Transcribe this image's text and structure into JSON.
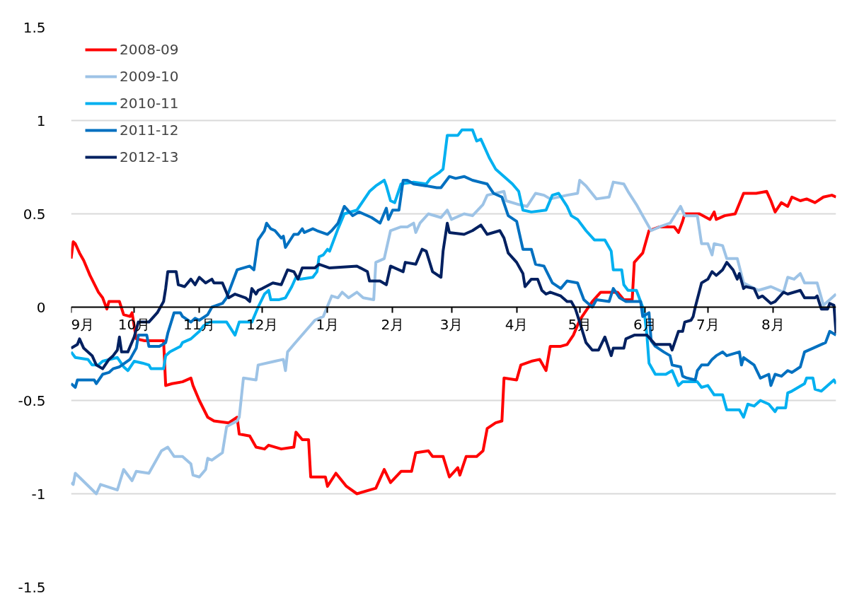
{
  "chart_data": {
    "type": "line",
    "xlim": [
      "2012-09-01",
      "2013-08-31"
    ],
    "ylim": [
      -1.5,
      1.5
    ],
    "xticks": [
      {
        "value": "2012-09-01",
        "label": "9月"
      },
      {
        "value": "2012-10-01",
        "label": "10月"
      },
      {
        "value": "2012-11-01",
        "label": "11月"
      },
      {
        "value": "2012-12-01",
        "label": "12月"
      },
      {
        "value": "2013-01-01",
        "label": "1月"
      },
      {
        "value": "2013-02-01",
        "label": "2月"
      },
      {
        "value": "2013-03-01",
        "label": "3月"
      },
      {
        "value": "2013-04-01",
        "label": "4月"
      },
      {
        "value": "2013-05-01",
        "label": "5月"
      },
      {
        "value": "2013-06-01",
        "label": "6月"
      },
      {
        "value": "2013-07-01",
        "label": "7月"
      },
      {
        "value": "2013-08-01",
        "label": "8月"
      }
    ],
    "yticks": [
      -1.5,
      -1,
      -0.5,
      0,
      0.5,
      1,
      1.5
    ],
    "grid": "y",
    "legend": "top left",
    "line_style": "solid",
    "series": [
      {
        "name": "2008-09",
        "color": "#ff0000",
        "x": [
          "2012-09-01",
          "2012-09-02",
          "2012-09-03",
          "2012-09-05",
          "2012-09-07",
          "2012-09-10",
          "2012-09-14",
          "2012-09-16",
          "2012-09-18",
          "2012-09-19",
          "2012-09-24",
          "2012-09-26",
          "2012-09-29",
          "2012-09-30",
          "2012-10-02",
          "2012-10-06",
          "2012-10-15",
          "2012-10-16",
          "2012-10-19",
          "2012-10-24",
          "2012-10-28",
          "2012-10-29",
          "2012-11-01",
          "2012-11-05",
          "2012-11-08",
          "2012-11-15",
          "2012-11-19",
          "2012-11-20",
          "2012-11-25",
          "2012-11-28",
          "2012-12-02",
          "2012-12-04",
          "2012-12-10",
          "2012-12-16",
          "2012-12-17",
          "2012-12-20",
          "2012-12-23",
          "2012-12-24",
          "2012-12-31",
          "2013-01-01",
          "2013-01-05",
          "2013-01-10",
          "2013-01-15",
          "2013-01-24",
          "2013-01-28",
          "2013-01-31",
          "2013-02-05",
          "2013-02-10",
          "2013-02-12",
          "2013-02-18",
          "2013-02-20",
          "2013-02-25",
          "2013-02-28",
          "2013-03-04",
          "2013-03-05",
          "2013-03-08",
          "2013-03-13",
          "2013-03-16",
          "2013-03-18",
          "2013-03-22",
          "2013-03-25",
          "2013-03-26",
          "2013-04-01",
          "2013-04-03",
          "2013-04-08",
          "2013-04-12",
          "2013-04-15",
          "2013-04-17",
          "2013-04-22",
          "2013-04-25",
          "2013-04-28",
          "2013-05-01",
          "2013-05-07",
          "2013-05-11",
          "2013-05-19",
          "2013-05-22",
          "2013-05-26",
          "2013-05-27",
          "2013-05-31",
          "2013-06-03",
          "2013-06-08",
          "2013-06-15",
          "2013-06-17",
          "2013-06-19",
          "2013-06-20",
          "2013-06-27",
          "2013-07-02",
          "2013-07-04",
          "2013-07-05",
          "2013-07-09",
          "2013-07-14",
          "2013-07-18",
          "2013-07-24",
          "2013-07-29",
          "2013-07-31",
          "2013-08-02",
          "2013-08-05",
          "2013-08-08",
          "2013-08-10",
          "2013-08-14",
          "2013-08-17",
          "2013-08-21",
          "2013-08-25",
          "2013-08-29",
          "2013-08-31"
        ],
        "values": [
          0.26,
          0.35,
          0.34,
          0.29,
          0.25,
          0.17,
          0.08,
          0.05,
          -0.01,
          0.03,
          0.03,
          -0.04,
          -0.05,
          -0.03,
          -0.17,
          -0.18,
          -0.18,
          -0.42,
          -0.41,
          -0.4,
          -0.38,
          -0.42,
          -0.5,
          -0.59,
          -0.61,
          -0.62,
          -0.59,
          -0.68,
          -0.69,
          -0.75,
          -0.76,
          -0.74,
          -0.76,
          -0.75,
          -0.67,
          -0.71,
          -0.71,
          -0.91,
          -0.91,
          -0.96,
          -0.89,
          -0.96,
          -1.0,
          -0.97,
          -0.87,
          -0.94,
          -0.88,
          -0.88,
          -0.78,
          -0.77,
          -0.8,
          -0.8,
          -0.91,
          -0.86,
          -0.9,
          -0.8,
          -0.8,
          -0.77,
          -0.65,
          -0.62,
          -0.61,
          -0.38,
          -0.39,
          -0.31,
          -0.29,
          -0.28,
          -0.34,
          -0.21,
          -0.21,
          -0.2,
          -0.15,
          -0.07,
          0.03,
          0.08,
          0.08,
          0.04,
          0.04,
          0.24,
          0.29,
          0.41,
          0.43,
          0.43,
          0.4,
          0.46,
          0.5,
          0.5,
          0.47,
          0.51,
          0.47,
          0.49,
          0.5,
          0.61,
          0.61,
          0.62,
          0.57,
          0.51,
          0.56,
          0.54,
          0.59,
          0.57,
          0.58,
          0.56,
          0.59,
          0.6,
          0.59
        ]
      },
      {
        "name": "2009-10",
        "color": "#9dc3e6",
        "x": [
          "2012-09-01",
          "2012-09-02",
          "2012-09-03",
          "2012-09-13",
          "2012-09-15",
          "2012-09-23",
          "2012-09-26",
          "2012-09-30",
          "2012-10-02",
          "2012-10-08",
          "2012-10-14",
          "2012-10-17",
          "2012-10-20",
          "2012-10-24",
          "2012-10-28",
          "2012-10-29",
          "2012-11-01",
          "2012-11-04",
          "2012-11-05",
          "2012-11-07",
          "2012-11-12",
          "2012-11-14",
          "2012-11-19",
          "2012-11-20",
          "2012-11-22",
          "2012-11-28",
          "2012-11-29",
          "2012-12-07",
          "2012-12-11",
          "2012-12-12",
          "2012-12-13",
          "2012-12-16",
          "2012-12-26",
          "2012-12-30",
          "2013-01-03",
          "2013-01-06",
          "2013-01-08",
          "2013-01-11",
          "2013-01-15",
          "2013-01-18",
          "2013-01-23",
          "2013-01-24",
          "2013-01-28",
          "2013-01-31",
          "2013-02-05",
          "2013-02-08",
          "2013-02-11",
          "2013-02-12",
          "2013-02-14",
          "2013-02-18",
          "2013-02-24",
          "2013-02-27",
          "2013-03-01",
          "2013-03-07",
          "2013-03-11",
          "2013-03-16",
          "2013-03-18",
          "2013-03-26",
          "2013-03-27",
          "2013-04-02",
          "2013-04-06",
          "2013-04-10",
          "2013-04-14",
          "2013-04-17",
          "2013-04-25",
          "2013-04-30",
          "2013-05-01",
          "2013-05-04",
          "2013-05-09",
          "2013-05-15",
          "2013-05-17",
          "2013-05-22",
          "2013-05-24",
          "2013-05-28",
          "2013-06-01",
          "2013-06-04",
          "2013-06-08",
          "2013-06-13",
          "2013-06-18",
          "2013-06-20",
          "2013-06-26",
          "2013-06-28",
          "2013-07-01",
          "2013-07-03",
          "2013-07-04",
          "2013-07-08",
          "2013-07-10",
          "2013-07-15",
          "2013-07-18",
          "2013-07-25",
          "2013-07-31",
          "2013-08-06",
          "2013-08-08",
          "2013-08-11",
          "2013-08-14",
          "2013-08-16",
          "2013-08-22",
          "2013-08-25",
          "2013-08-28",
          "2013-08-31"
        ],
        "values": [
          -0.94,
          -0.95,
          -0.89,
          -1.0,
          -0.95,
          -0.98,
          -0.87,
          -0.93,
          -0.88,
          -0.89,
          -0.77,
          -0.75,
          -0.8,
          -0.8,
          -0.84,
          -0.9,
          -0.91,
          -0.87,
          -0.81,
          -0.82,
          -0.78,
          -0.64,
          -0.61,
          -0.59,
          -0.38,
          -0.39,
          -0.31,
          -0.29,
          -0.28,
          -0.34,
          -0.24,
          -0.2,
          -0.07,
          -0.05,
          0.06,
          0.05,
          0.08,
          0.05,
          0.08,
          0.05,
          0.04,
          0.24,
          0.26,
          0.41,
          0.43,
          0.43,
          0.45,
          0.4,
          0.45,
          0.5,
          0.48,
          0.52,
          0.47,
          0.5,
          0.49,
          0.55,
          0.6,
          0.62,
          0.57,
          0.55,
          0.54,
          0.61,
          0.6,
          0.58,
          0.6,
          0.61,
          0.68,
          0.65,
          0.58,
          0.59,
          0.67,
          0.66,
          0.62,
          0.55,
          0.47,
          0.41,
          0.43,
          0.45,
          0.54,
          0.49,
          0.49,
          0.34,
          0.34,
          0.28,
          0.34,
          0.33,
          0.26,
          0.26,
          0.13,
          0.09,
          0.11,
          0.08,
          0.16,
          0.15,
          0.18,
          0.13,
          0.13,
          0.01,
          0.04,
          0.07
        ]
      },
      {
        "name": "2010-11",
        "color": "#00b0f0",
        "x": [
          "2012-09-01",
          "2012-09-03",
          "2012-09-09",
          "2012-09-11",
          "2012-09-14",
          "2012-09-16",
          "2012-09-23",
          "2012-09-26",
          "2012-09-28",
          "2012-10-01",
          "2012-10-05",
          "2012-10-08",
          "2012-10-09",
          "2012-10-15",
          "2012-10-16",
          "2012-10-18",
          "2012-10-23",
          "2012-10-24",
          "2012-10-28",
          "2012-11-01",
          "2012-11-03",
          "2012-11-06",
          "2012-11-09",
          "2012-11-14",
          "2012-11-18",
          "2012-11-20",
          "2012-11-26",
          "2012-11-29",
          "2012-12-02",
          "2012-12-04",
          "2012-12-05",
          "2012-12-09",
          "2012-12-12",
          "2012-12-15",
          "2012-12-17",
          "2012-12-19",
          "2012-12-25",
          "2012-12-27",
          "2012-12-28",
          "2012-12-30",
          "2013-01-01",
          "2013-01-02",
          "2013-01-06",
          "2013-01-09",
          "2013-01-15",
          "2013-01-21",
          "2013-01-24",
          "2013-01-28",
          "2013-01-29",
          "2013-01-31",
          "2013-02-02",
          "2013-02-05",
          "2013-02-11",
          "2013-02-17",
          "2013-02-19",
          "2013-02-23",
          "2013-02-25",
          "2013-02-27",
          "2013-03-04",
          "2013-03-06",
          "2013-03-11",
          "2013-03-13",
          "2013-03-15",
          "2013-03-19",
          "2013-03-22",
          "2013-03-26",
          "2013-03-30",
          "2013-04-02",
          "2013-04-04",
          "2013-04-08",
          "2013-04-15",
          "2013-04-18",
          "2013-04-21",
          "2013-04-25",
          "2013-04-27",
          "2013-04-30",
          "2013-05-04",
          "2013-05-08",
          "2013-05-13",
          "2013-05-16",
          "2013-05-17",
          "2013-05-21",
          "2013-05-22",
          "2013-05-24",
          "2013-05-28",
          "2013-05-31",
          "2013-06-01",
          "2013-06-02",
          "2013-06-03",
          "2013-06-06",
          "2013-06-11",
          "2013-06-14",
          "2013-06-17",
          "2013-06-19",
          "2013-06-26",
          "2013-06-28",
          "2013-07-01",
          "2013-07-04",
          "2013-07-08",
          "2013-07-10",
          "2013-07-16",
          "2013-07-18",
          "2013-07-20",
          "2013-07-23",
          "2013-07-26",
          "2013-07-30",
          "2013-08-02",
          "2013-08-03",
          "2013-08-07",
          "2013-08-08",
          "2013-08-10",
          "2013-08-16",
          "2013-08-17",
          "2013-08-20",
          "2013-08-21",
          "2013-08-24",
          "2013-08-30",
          "2013-08-31"
        ],
        "values": [
          -0.24,
          -0.27,
          -0.28,
          -0.31,
          -0.31,
          -0.29,
          -0.27,
          -0.32,
          -0.34,
          -0.29,
          -0.3,
          -0.31,
          -0.33,
          -0.33,
          -0.26,
          -0.24,
          -0.21,
          -0.19,
          -0.17,
          -0.13,
          -0.1,
          -0.08,
          -0.08,
          -0.08,
          -0.15,
          -0.08,
          -0.08,
          0.0,
          0.07,
          0.09,
          0.04,
          0.04,
          0.05,
          0.11,
          0.16,
          0.15,
          0.16,
          0.19,
          0.27,
          0.28,
          0.31,
          0.3,
          0.42,
          0.5,
          0.52,
          0.62,
          0.65,
          0.68,
          0.65,
          0.57,
          0.56,
          0.66,
          0.67,
          0.66,
          0.69,
          0.72,
          0.74,
          0.92,
          0.92,
          0.95,
          0.95,
          0.89,
          0.9,
          0.8,
          0.74,
          0.7,
          0.66,
          0.62,
          0.52,
          0.51,
          0.52,
          0.6,
          0.61,
          0.54,
          0.49,
          0.47,
          0.41,
          0.36,
          0.36,
          0.3,
          0.2,
          0.2,
          0.12,
          0.09,
          0.09,
          0.0,
          -0.05,
          -0.15,
          -0.3,
          -0.36,
          -0.36,
          -0.34,
          -0.42,
          -0.4,
          -0.4,
          -0.43,
          -0.42,
          -0.47,
          -0.47,
          -0.55,
          -0.55,
          -0.59,
          -0.52,
          -0.53,
          -0.5,
          -0.52,
          -0.56,
          -0.54,
          -0.54,
          -0.46,
          -0.45,
          -0.41,
          -0.38,
          -0.38,
          -0.44,
          -0.45,
          -0.39,
          -0.41
        ]
      },
      {
        "name": "2011-12",
        "color": "#0070c0",
        "x": [
          "2012-09-01",
          "2012-09-03",
          "2012-09-04",
          "2012-09-12",
          "2012-09-13",
          "2012-09-16",
          "2012-09-19",
          "2012-09-21",
          "2012-09-24",
          "2012-09-29",
          "2012-09-30",
          "2012-10-02",
          "2012-10-03",
          "2012-10-07",
          "2012-10-08",
          "2012-10-13",
          "2012-10-16",
          "2012-10-17",
          "2012-10-20",
          "2012-10-23",
          "2012-10-24",
          "2012-10-28",
          "2012-10-30",
          "2012-11-01",
          "2012-11-05",
          "2012-11-07",
          "2012-11-12",
          "2012-11-14",
          "2012-11-19",
          "2012-11-25",
          "2012-11-27",
          "2012-11-29",
          "2012-12-02",
          "2012-12-03",
          "2012-12-05",
          "2012-12-07",
          "2012-12-10",
          "2012-12-11",
          "2012-12-12",
          "2012-12-16",
          "2012-12-18",
          "2012-12-20",
          "2012-12-21",
          "2012-12-25",
          "2012-12-27",
          "2013-01-01",
          "2013-01-03",
          "2013-01-06",
          "2013-01-09",
          "2013-01-13",
          "2013-01-16",
          "2013-01-22",
          "2013-01-26",
          "2013-01-29",
          "2013-01-30",
          "2013-02-01",
          "2013-02-04",
          "2013-02-06",
          "2013-02-08",
          "2013-02-11",
          "2013-02-17",
          "2013-02-22",
          "2013-02-24",
          "2013-02-28",
          "2013-03-03",
          "2013-03-07",
          "2013-03-11",
          "2013-03-18",
          "2013-03-21",
          "2013-03-25",
          "2013-03-28",
          "2013-04-01",
          "2013-04-04",
          "2013-04-08",
          "2013-04-10",
          "2013-04-14",
          "2013-04-18",
          "2013-04-22",
          "2013-04-25",
          "2013-04-30",
          "2013-05-03",
          "2013-05-07",
          "2013-05-09",
          "2013-05-15",
          "2013-05-17",
          "2013-05-20",
          "2013-05-23",
          "2013-05-30",
          "2013-05-31",
          "2013-06-03",
          "2013-06-04",
          "2013-06-06",
          "2013-06-10",
          "2013-06-13",
          "2013-06-14",
          "2013-06-18",
          "2013-06-19",
          "2013-06-21",
          "2013-06-25",
          "2013-06-26",
          "2013-06-28",
          "2013-07-01",
          "2013-07-03",
          "2013-07-05",
          "2013-07-08",
          "2013-07-10",
          "2013-07-16",
          "2013-07-17",
          "2013-07-18",
          "2013-07-23",
          "2013-07-26",
          "2013-07-30",
          "2013-07-31",
          "2013-08-02",
          "2013-08-05",
          "2013-08-08",
          "2013-08-10",
          "2013-08-14",
          "2013-08-16",
          "2013-08-20",
          "2013-08-26",
          "2013-08-28",
          "2013-08-31"
        ],
        "values": [
          -0.41,
          -0.43,
          -0.39,
          -0.39,
          -0.41,
          -0.36,
          -0.35,
          -0.33,
          -0.32,
          -0.28,
          -0.26,
          -0.22,
          -0.15,
          -0.15,
          -0.21,
          -0.21,
          -0.19,
          -0.14,
          -0.03,
          -0.03,
          -0.05,
          -0.08,
          -0.06,
          -0.07,
          -0.04,
          0.0,
          0.02,
          0.05,
          0.2,
          0.22,
          0.2,
          0.36,
          0.41,
          0.45,
          0.42,
          0.41,
          0.37,
          0.38,
          0.32,
          0.39,
          0.39,
          0.42,
          0.4,
          0.42,
          0.41,
          0.39,
          0.41,
          0.45,
          0.54,
          0.49,
          0.51,
          0.48,
          0.45,
          0.53,
          0.47,
          0.52,
          0.52,
          0.68,
          0.68,
          0.66,
          0.65,
          0.64,
          0.64,
          0.7,
          0.69,
          0.7,
          0.68,
          0.66,
          0.61,
          0.59,
          0.49,
          0.46,
          0.31,
          0.31,
          0.23,
          0.22,
          0.13,
          0.1,
          0.14,
          0.13,
          0.04,
          0.0,
          0.04,
          0.03,
          0.1,
          0.05,
          0.03,
          0.03,
          -0.05,
          -0.03,
          -0.18,
          -0.21,
          -0.24,
          -0.26,
          -0.31,
          -0.32,
          -0.37,
          -0.38,
          -0.39,
          -0.34,
          -0.31,
          -0.31,
          -0.28,
          -0.26,
          -0.24,
          -0.26,
          -0.24,
          -0.31,
          -0.27,
          -0.31,
          -0.38,
          -0.36,
          -0.42,
          -0.36,
          -0.37,
          -0.34,
          -0.35,
          -0.32,
          -0.24,
          -0.22,
          -0.19,
          -0.13,
          -0.15
        ]
      },
      {
        "name": "2012-13",
        "color": "#002060",
        "x": [
          "2012-09-01",
          "2012-09-04",
          "2012-09-05",
          "2012-09-07",
          "2012-09-11",
          "2012-09-13",
          "2012-09-16",
          "2012-09-19",
          "2012-09-21",
          "2012-09-23",
          "2012-09-24",
          "2012-09-25",
          "2012-09-28",
          "2012-10-01",
          "2012-10-03",
          "2012-10-08",
          "2012-10-12",
          "2012-10-15",
          "2012-10-16",
          "2012-10-17",
          "2012-10-21",
          "2012-10-22",
          "2012-10-25",
          "2012-10-28",
          "2012-10-30",
          "2012-11-01",
          "2012-11-04",
          "2012-11-07",
          "2012-11-08",
          "2012-11-12",
          "2012-11-15",
          "2012-11-18",
          "2012-11-23",
          "2012-11-25",
          "2012-11-26",
          "2012-11-28",
          "2012-11-29",
          "2012-12-01",
          "2012-12-06",
          "2012-12-10",
          "2012-12-13",
          "2012-12-16",
          "2012-12-18",
          "2012-12-20",
          "2012-12-26",
          "2012-12-28",
          "2013-01-02",
          "2013-01-15",
          "2013-01-20",
          "2013-01-21",
          "2013-01-26",
          "2013-01-29",
          "2013-01-31",
          "2013-02-06",
          "2013-02-07",
          "2013-02-12",
          "2013-02-15",
          "2013-02-17",
          "2013-02-20",
          "2013-02-24",
          "2013-02-25",
          "2013-02-27",
          "2013-02-28",
          "2013-03-07",
          "2013-03-11",
          "2013-03-15",
          "2013-03-18",
          "2013-03-24",
          "2013-03-26",
          "2013-03-28",
          "2013-04-01",
          "2013-04-04",
          "2013-04-05",
          "2013-04-08",
          "2013-04-11",
          "2013-04-13",
          "2013-04-15",
          "2013-04-17",
          "2013-04-22",
          "2013-04-25",
          "2013-04-27",
          "2013-04-29",
          "2013-05-01",
          "2013-05-04",
          "2013-05-07",
          "2013-05-10",
          "2013-05-13",
          "2013-05-16",
          "2013-05-17",
          "2013-05-22",
          "2013-05-23",
          "2013-05-27",
          "2013-06-02",
          "2013-06-06",
          "2013-06-13",
          "2013-06-14",
          "2013-06-17",
          "2013-06-19",
          "2013-06-20",
          "2013-06-23",
          "2013-06-24",
          "2013-06-25",
          "2013-06-28",
          "2013-07-01",
          "2013-07-03",
          "2013-07-05",
          "2013-07-08",
          "2013-07-10",
          "2013-07-13",
          "2013-07-15",
          "2013-07-16",
          "2013-07-18",
          "2013-07-19",
          "2013-07-23",
          "2013-07-25",
          "2013-07-27",
          "2013-07-31",
          "2013-08-02",
          "2013-08-06",
          "2013-08-08",
          "2013-08-14",
          "2013-08-16",
          "2013-08-21",
          "2013-08-22",
          "2013-08-24",
          "2013-08-27",
          "2013-08-28",
          "2013-08-30",
          "2013-08-31"
        ],
        "values": [
          -0.22,
          -0.2,
          -0.17,
          -0.22,
          -0.26,
          -0.31,
          -0.33,
          -0.28,
          -0.26,
          -0.23,
          -0.16,
          -0.24,
          -0.24,
          -0.16,
          -0.08,
          -0.08,
          -0.03,
          0.03,
          0.1,
          0.19,
          0.19,
          0.12,
          0.11,
          0.15,
          0.12,
          0.16,
          0.13,
          0.15,
          0.13,
          0.13,
          0.05,
          0.07,
          0.05,
          0.03,
          0.1,
          0.07,
          0.09,
          0.1,
          0.13,
          0.12,
          0.2,
          0.19,
          0.15,
          0.21,
          0.21,
          0.23,
          0.21,
          0.22,
          0.19,
          0.14,
          0.14,
          0.12,
          0.22,
          0.19,
          0.24,
          0.23,
          0.31,
          0.3,
          0.19,
          0.16,
          0.3,
          0.45,
          0.4,
          0.39,
          0.41,
          0.44,
          0.39,
          0.41,
          0.37,
          0.29,
          0.24,
          0.18,
          0.11,
          0.15,
          0.15,
          0.09,
          0.07,
          0.08,
          0.06,
          0.03,
          0.03,
          -0.01,
          -0.08,
          -0.19,
          -0.23,
          -0.23,
          -0.16,
          -0.26,
          -0.22,
          -0.22,
          -0.17,
          -0.15,
          -0.15,
          -0.2,
          -0.2,
          -0.23,
          -0.13,
          -0.13,
          -0.08,
          -0.07,
          -0.05,
          0.0,
          0.13,
          0.15,
          0.19,
          0.17,
          0.2,
          0.24,
          0.2,
          0.15,
          0.18,
          0.1,
          0.11,
          0.1,
          0.05,
          0.06,
          0.02,
          0.03,
          0.08,
          0.07,
          0.09,
          0.05,
          0.05,
          0.06,
          -0.01,
          -0.01,
          0.02,
          0.01,
          -0.14
        ]
      }
    ]
  }
}
